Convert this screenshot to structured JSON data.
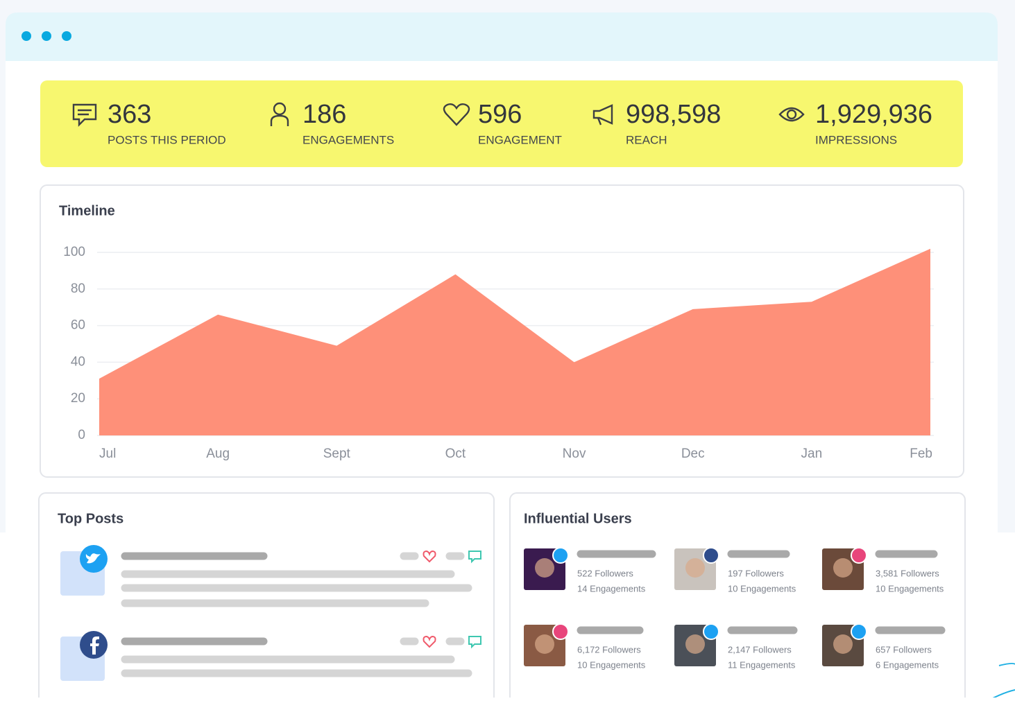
{
  "stats": [
    {
      "value": "363",
      "label": "POSTS THIS PERIOD"
    },
    {
      "value": "186",
      "label": "ENGAGEMENTS"
    },
    {
      "value": "596",
      "label": "ENGAGEMENT"
    },
    {
      "value": "998,598",
      "label": "REACH"
    },
    {
      "value": "1,929,936",
      "label": "IMPRESSIONS"
    }
  ],
  "chart_data": {
    "type": "area",
    "title": "Timeline",
    "categories": [
      "Jul",
      "Aug",
      "Sept",
      "Oct",
      "Nov",
      "Dec",
      "Jan",
      "Feb"
    ],
    "values": [
      31,
      66,
      49,
      88,
      40,
      69,
      73,
      102
    ],
    "color": "#fe9079",
    "ylim": [
      0,
      104
    ],
    "yticks": [
      0,
      20,
      40,
      60,
      80,
      100
    ],
    "grid": true
  },
  "top_posts": {
    "title": "Top Posts"
  },
  "influential_users": {
    "title": "Influential Users",
    "users": [
      {
        "followers": "522 Followers",
        "engagements": "14 Engagements"
      },
      {
        "followers": "197 Followers",
        "engagements": "10 Engagements"
      },
      {
        "followers": "3,581 Followers",
        "engagements": "10 Engagements"
      },
      {
        "followers": "6,172 Followers",
        "engagements": "10 Engagements"
      },
      {
        "followers": "2,147 Followers",
        "engagements": "11 Engagements"
      },
      {
        "followers": "657 Followers",
        "engagements": "6 Engagements"
      }
    ]
  }
}
